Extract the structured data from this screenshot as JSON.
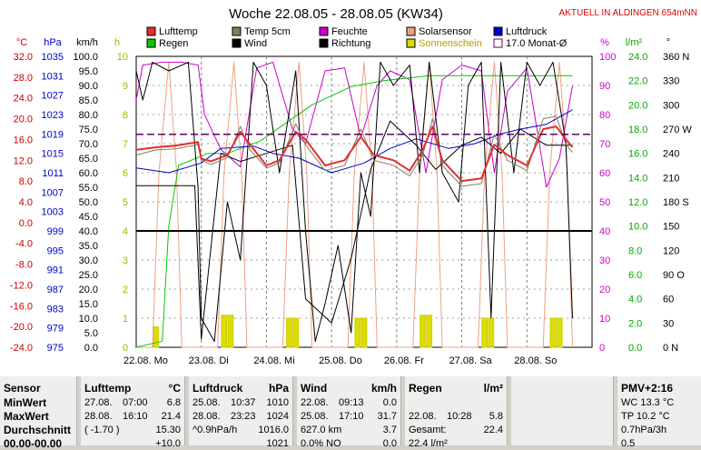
{
  "chart_data": {
    "type": "line",
    "title": "Woche 22.08.05 - 28.08.05 (KW34)",
    "subtitle": "AKTUELL IN ALDINGEN 654mNN",
    "legend": [
      {
        "name": "Lufttemp",
        "color": "#e03030"
      },
      {
        "name": "Temp 5cm",
        "color": "#808060"
      },
      {
        "name": "Feuchte",
        "color": "#cc00cc"
      },
      {
        "name": "Solarsensor",
        "color": "#f0a080"
      },
      {
        "name": "Luftdruck",
        "color": "#0000cc"
      },
      {
        "name": "Regen",
        "color": "#00cc00"
      },
      {
        "name": "Wind",
        "color": "#000000"
      },
      {
        "name": "Richtung",
        "color": "#000000"
      },
      {
        "name": "Sonnenschein",
        "color": "#dddd00"
      },
      {
        "name": "17.0 Monat-Ø",
        "color": "#600060"
      }
    ],
    "axes": [
      {
        "unit": "°C",
        "color": "#cc0000",
        "ticks": [
          "32.0",
          "28.0",
          "24.0",
          "20.0",
          "16.0",
          "12.0",
          "8.0",
          "4.0",
          "0.0",
          "-4.0",
          "-8.0",
          "-12.0",
          "-16.0",
          "-20.0",
          "-24.0"
        ]
      },
      {
        "unit": "hPa",
        "color": "#0000cc",
        "ticks": [
          "1035",
          "1031",
          "1027",
          "1023",
          "1019",
          "1015",
          "1011",
          "1007",
          "1003",
          "999",
          "995",
          "991",
          "987",
          "983",
          "979",
          "975"
        ]
      },
      {
        "unit": "km/h",
        "color": "#000000",
        "ticks": [
          "100.0",
          "95.0",
          "90.0",
          "85.0",
          "80.0",
          "75.0",
          "70.0",
          "65.0",
          "60.0",
          "55.0",
          "50.0",
          "45.0",
          "40.0",
          "35.0",
          "30.0",
          "25.0",
          "20.0",
          "15.0",
          "10.0",
          "5.0",
          "0.0"
        ]
      },
      {
        "unit": "h",
        "color": "#b0b000",
        "ticks": [
          "10",
          "9",
          "8",
          "7",
          "6",
          "5",
          "4",
          "3",
          "2",
          "1",
          "0"
        ]
      },
      {
        "unit": "%",
        "color": "#cc00cc",
        "ticks": [
          "100",
          "90",
          "80",
          "70",
          "60",
          "50",
          "40",
          "30",
          "20",
          "10",
          "0"
        ]
      },
      {
        "unit": "l/m²",
        "color": "#00aa00",
        "ticks": [
          "24.0",
          "22.0",
          "20.0",
          "18.0",
          "16.0",
          "14.0",
          "12.0",
          "10.0",
          "8.0",
          "6.0",
          "4.0",
          "2.0",
          "0.0"
        ]
      },
      {
        "unit": "°",
        "color": "#000000",
        "ticks": [
          "360 N",
          "330",
          "300",
          "270 W",
          "240",
          "210",
          "180 S",
          "150",
          "120",
          "90 O",
          "60",
          "30",
          "0 N"
        ]
      }
    ],
    "x_labels": [
      "22.08. Mo",
      "23.08. Di",
      "24.08. Mi",
      "25.08. Do",
      "26.08. Fr",
      "27.08. Sa",
      "28.08. So"
    ],
    "series": [
      {
        "name": "Lufttemp",
        "unit": "°C",
        "points": [
          [
            0,
            14
          ],
          [
            0.3,
            14.5
          ],
          [
            0.6,
            14.8
          ],
          [
            0.95,
            15.5
          ],
          [
            1.0,
            12.3
          ],
          [
            1.15,
            11.8
          ],
          [
            1.4,
            13
          ],
          [
            1.6,
            17.5
          ],
          [
            1.75,
            15
          ],
          [
            2.0,
            11
          ],
          [
            2.2,
            12
          ],
          [
            2.45,
            17.5
          ],
          [
            2.6,
            16
          ],
          [
            2.9,
            11
          ],
          [
            3.2,
            12
          ],
          [
            3.45,
            16.5
          ],
          [
            3.65,
            13
          ],
          [
            3.95,
            12
          ],
          [
            4.2,
            10
          ],
          [
            4.4,
            14
          ],
          [
            4.55,
            18.5
          ],
          [
            4.7,
            12
          ],
          [
            5.0,
            8
          ],
          [
            5.3,
            8.5
          ],
          [
            5.5,
            15
          ],
          [
            5.7,
            13
          ],
          [
            6.0,
            11
          ],
          [
            6.25,
            18
          ],
          [
            6.45,
            18.5
          ],
          [
            6.6,
            16
          ],
          [
            6.7,
            14.5
          ]
        ]
      },
      {
        "name": "Temp 5cm",
        "unit": "°C",
        "points": [
          [
            0,
            13
          ],
          [
            0.3,
            14
          ],
          [
            0.6,
            14.2
          ],
          [
            0.95,
            15
          ],
          [
            1.0,
            12
          ],
          [
            1.15,
            11.2
          ],
          [
            1.4,
            12.5
          ],
          [
            1.6,
            18.5
          ],
          [
            1.75,
            14
          ],
          [
            2.0,
            10.5
          ],
          [
            2.2,
            11.5
          ],
          [
            2.45,
            19
          ],
          [
            2.6,
            15
          ],
          [
            2.9,
            10
          ],
          [
            3.2,
            11
          ],
          [
            3.45,
            18
          ],
          [
            3.65,
            12
          ],
          [
            3.95,
            11
          ],
          [
            4.2,
            9
          ],
          [
            4.4,
            13
          ],
          [
            4.55,
            20
          ],
          [
            4.7,
            11
          ],
          [
            5.0,
            7
          ],
          [
            5.3,
            7.5
          ],
          [
            5.5,
            17
          ],
          [
            5.7,
            12
          ],
          [
            6.0,
            10
          ],
          [
            6.25,
            20
          ],
          [
            6.45,
            20.5
          ],
          [
            6.6,
            15
          ],
          [
            6.7,
            13.5
          ]
        ]
      },
      {
        "name": "Luftdruck",
        "unit": "hPa",
        "points": [
          [
            0,
            1012
          ],
          [
            0.5,
            1011
          ],
          [
            1.0,
            1013
          ],
          [
            1.3,
            1016
          ],
          [
            1.8,
            1016.5
          ],
          [
            2.1,
            1015
          ],
          [
            2.5,
            1014
          ],
          [
            3.0,
            1011
          ],
          [
            3.5,
            1013
          ],
          [
            3.9,
            1016
          ],
          [
            4.3,
            1018
          ],
          [
            4.8,
            1016
          ],
          [
            5.2,
            1017
          ],
          [
            5.6,
            1019
          ],
          [
            5.9,
            1020
          ],
          [
            6.3,
            1021
          ],
          [
            6.7,
            1024
          ]
        ]
      },
      {
        "name": "Feuchte",
        "unit": "%",
        "points": [
          [
            0,
            85
          ],
          [
            0.1,
            97
          ],
          [
            0.4,
            98
          ],
          [
            0.7,
            98
          ],
          [
            0.95,
            97
          ],
          [
            1.05,
            80
          ],
          [
            1.3,
            68
          ],
          [
            1.6,
            62
          ],
          [
            1.85,
            96
          ],
          [
            2.1,
            98
          ],
          [
            2.4,
            75
          ],
          [
            2.6,
            70
          ],
          [
            2.9,
            95
          ],
          [
            3.2,
            96
          ],
          [
            3.45,
            72
          ],
          [
            3.7,
            90
          ],
          [
            3.9,
            95
          ],
          [
            4.2,
            92
          ],
          [
            4.45,
            60
          ],
          [
            4.7,
            92
          ],
          [
            5.0,
            97
          ],
          [
            5.3,
            95
          ],
          [
            5.5,
            60
          ],
          [
            5.7,
            88
          ],
          [
            6.0,
            96
          ],
          [
            6.3,
            55
          ],
          [
            6.5,
            65
          ],
          [
            6.7,
            90
          ]
        ]
      },
      {
        "name": "Regen",
        "unit": "l/m²",
        "points": [
          [
            0,
            0
          ],
          [
            0.4,
            0.5
          ],
          [
            0.5,
            10
          ],
          [
            0.65,
            15
          ],
          [
            1.1,
            16
          ],
          [
            1.4,
            16
          ],
          [
            1.9,
            17
          ],
          [
            2.3,
            18.5
          ],
          [
            2.7,
            20
          ],
          [
            3.3,
            21.5
          ],
          [
            3.8,
            22.0
          ],
          [
            4.5,
            22.4
          ],
          [
            5.0,
            22.4
          ],
          [
            6.0,
            22.4
          ],
          [
            6.7,
            22.4
          ]
        ]
      },
      {
        "name": "Solarsensor",
        "unit": "%",
        "points": [
          [
            0,
            0
          ],
          [
            0.25,
            0
          ],
          [
            0.35,
            60
          ],
          [
            0.5,
            98
          ],
          [
            0.62,
            60
          ],
          [
            0.7,
            0
          ],
          [
            1.25,
            0
          ],
          [
            1.35,
            60
          ],
          [
            1.5,
            98
          ],
          [
            1.62,
            60
          ],
          [
            1.7,
            0
          ],
          [
            2.25,
            0
          ],
          [
            2.35,
            60
          ],
          [
            2.5,
            98
          ],
          [
            2.62,
            60
          ],
          [
            2.7,
            0
          ],
          [
            3.25,
            0
          ],
          [
            3.35,
            60
          ],
          [
            3.5,
            98
          ],
          [
            3.62,
            60
          ],
          [
            3.7,
            0
          ],
          [
            4.25,
            0
          ],
          [
            4.35,
            60
          ],
          [
            4.5,
            98
          ],
          [
            4.62,
            60
          ],
          [
            4.7,
            0
          ],
          [
            5.25,
            0
          ],
          [
            5.35,
            60
          ],
          [
            5.5,
            98
          ],
          [
            5.62,
            60
          ],
          [
            5.7,
            0
          ],
          [
            6.25,
            0
          ],
          [
            6.35,
            60
          ],
          [
            6.5,
            98
          ],
          [
            6.62,
            60
          ],
          [
            6.7,
            0
          ]
        ]
      },
      {
        "name": "Wind",
        "unit": "km/h",
        "points": [
          [
            0,
            95
          ],
          [
            0.1,
            85
          ],
          [
            0.25,
            98
          ],
          [
            0.5,
            95
          ],
          [
            0.8,
            98
          ],
          [
            0.95,
            55
          ],
          [
            1.0,
            10
          ],
          [
            1.2,
            2
          ],
          [
            1.4,
            50
          ],
          [
            1.6,
            30
          ],
          [
            1.8,
            98
          ],
          [
            2.0,
            90
          ],
          [
            2.2,
            60
          ],
          [
            2.45,
            95
          ],
          [
            2.6,
            40
          ],
          [
            2.75,
            2
          ],
          [
            2.9,
            15
          ],
          [
            3.1,
            35
          ],
          [
            3.3,
            5
          ],
          [
            3.45,
            60
          ],
          [
            3.6,
            45
          ],
          [
            3.75,
            98
          ],
          [
            3.95,
            90
          ],
          [
            4.2,
            97
          ],
          [
            4.35,
            60
          ],
          [
            4.5,
            98
          ],
          [
            4.7,
            60
          ],
          [
            4.95,
            50
          ],
          [
            5.1,
            90
          ],
          [
            5.3,
            98
          ],
          [
            5.45,
            10
          ],
          [
            5.6,
            98
          ],
          [
            5.8,
            60
          ],
          [
            6.0,
            98
          ],
          [
            6.2,
            90
          ],
          [
            6.4,
            98
          ],
          [
            6.6,
            70
          ],
          [
            6.7,
            10
          ]
        ]
      },
      {
        "name": "Richtung",
        "unit": "°",
        "points": [
          [
            0,
            200
          ],
          [
            0.9,
            200
          ],
          [
            1.0,
            10
          ],
          [
            1.3,
            240
          ],
          [
            1.6,
            230
          ],
          [
            2.0,
            240
          ],
          [
            2.4,
            250
          ],
          [
            2.6,
            60
          ],
          [
            3.0,
            30
          ],
          [
            3.3,
            110
          ],
          [
            3.6,
            220
          ],
          [
            3.9,
            280
          ],
          [
            4.3,
            250
          ],
          [
            4.6,
            220
          ],
          [
            5.0,
            250
          ],
          [
            5.3,
            260
          ],
          [
            5.6,
            240
          ],
          [
            5.9,
            270
          ],
          [
            6.3,
            250
          ],
          [
            6.7,
            250
          ]
        ]
      },
      {
        "name": "Sonnenschein",
        "unit": "h",
        "bars": [
          [
            0.3,
            0.7
          ],
          [
            1.35,
            1.1
          ],
          [
            1.45,
            1.1
          ],
          [
            2.35,
            1.0
          ],
          [
            2.45,
            1.0
          ],
          [
            3.4,
            1.0
          ],
          [
            3.5,
            1.0
          ],
          [
            4.4,
            1.1
          ],
          [
            4.5,
            1.1
          ],
          [
            5.35,
            1.0
          ],
          [
            5.45,
            1.0
          ],
          [
            6.4,
            1.0
          ],
          [
            6.5,
            1.0
          ]
        ]
      }
    ],
    "reference_lines": [
      {
        "name": "17.0 Monat-Ø",
        "unit": "°C",
        "value": 17.0
      },
      {
        "name": "40 km/h",
        "unit": "km/h",
        "value": 40
      }
    ]
  },
  "stats": {
    "sensor": {
      "header": "Sensor",
      "rows": [
        "MinWert",
        "MaxWert",
        "Durchschnitt",
        "00.00-00.00"
      ]
    },
    "lufttemp": {
      "header": "Lufttemp",
      "unit": "°C",
      "rows": [
        [
          "27.08.",
          "07:00",
          "6.8"
        ],
        [
          "28.08.",
          "16:10",
          "21.4"
        ],
        [
          "( -1.70 )",
          "",
          "15.30"
        ],
        [
          "",
          "",
          "+10.0"
        ]
      ]
    },
    "luftdruck": {
      "header": "Luftdruck",
      "unit": "hPa",
      "rows": [
        [
          "25.08.",
          "10:37",
          "1010"
        ],
        [
          "28.08.",
          "23:23",
          "1024"
        ],
        [
          "^0.9hPa/h",
          "",
          "1016.0"
        ],
        [
          "",
          "",
          "1021"
        ]
      ]
    },
    "wind": {
      "header": "Wind",
      "unit": "km/h",
      "rows": [
        [
          "22.08.",
          "09:13",
          "0.0"
        ],
        [
          "25.08.",
          "17:10",
          "31.7"
        ],
        [
          "627.0 km",
          "",
          "3.7"
        ],
        [
          "0.0% NO",
          "",
          "0.0"
        ]
      ]
    },
    "regen": {
      "header": "Regen",
      "unit": "l/m²",
      "rows": [
        [
          "",
          "",
          ""
        ],
        [
          "22.08.",
          "10:28",
          "5.8"
        ],
        [
          "Gesamt:",
          "",
          "22.4"
        ],
        [
          "22.4 l/m²",
          "",
          ""
        ]
      ]
    },
    "pmv": {
      "header": "PMV+2:16",
      "rows": [
        "WC 13.3 °C",
        "TP 10.2 °C",
        "0.7hPa/3h",
        "0.5"
      ]
    }
  }
}
